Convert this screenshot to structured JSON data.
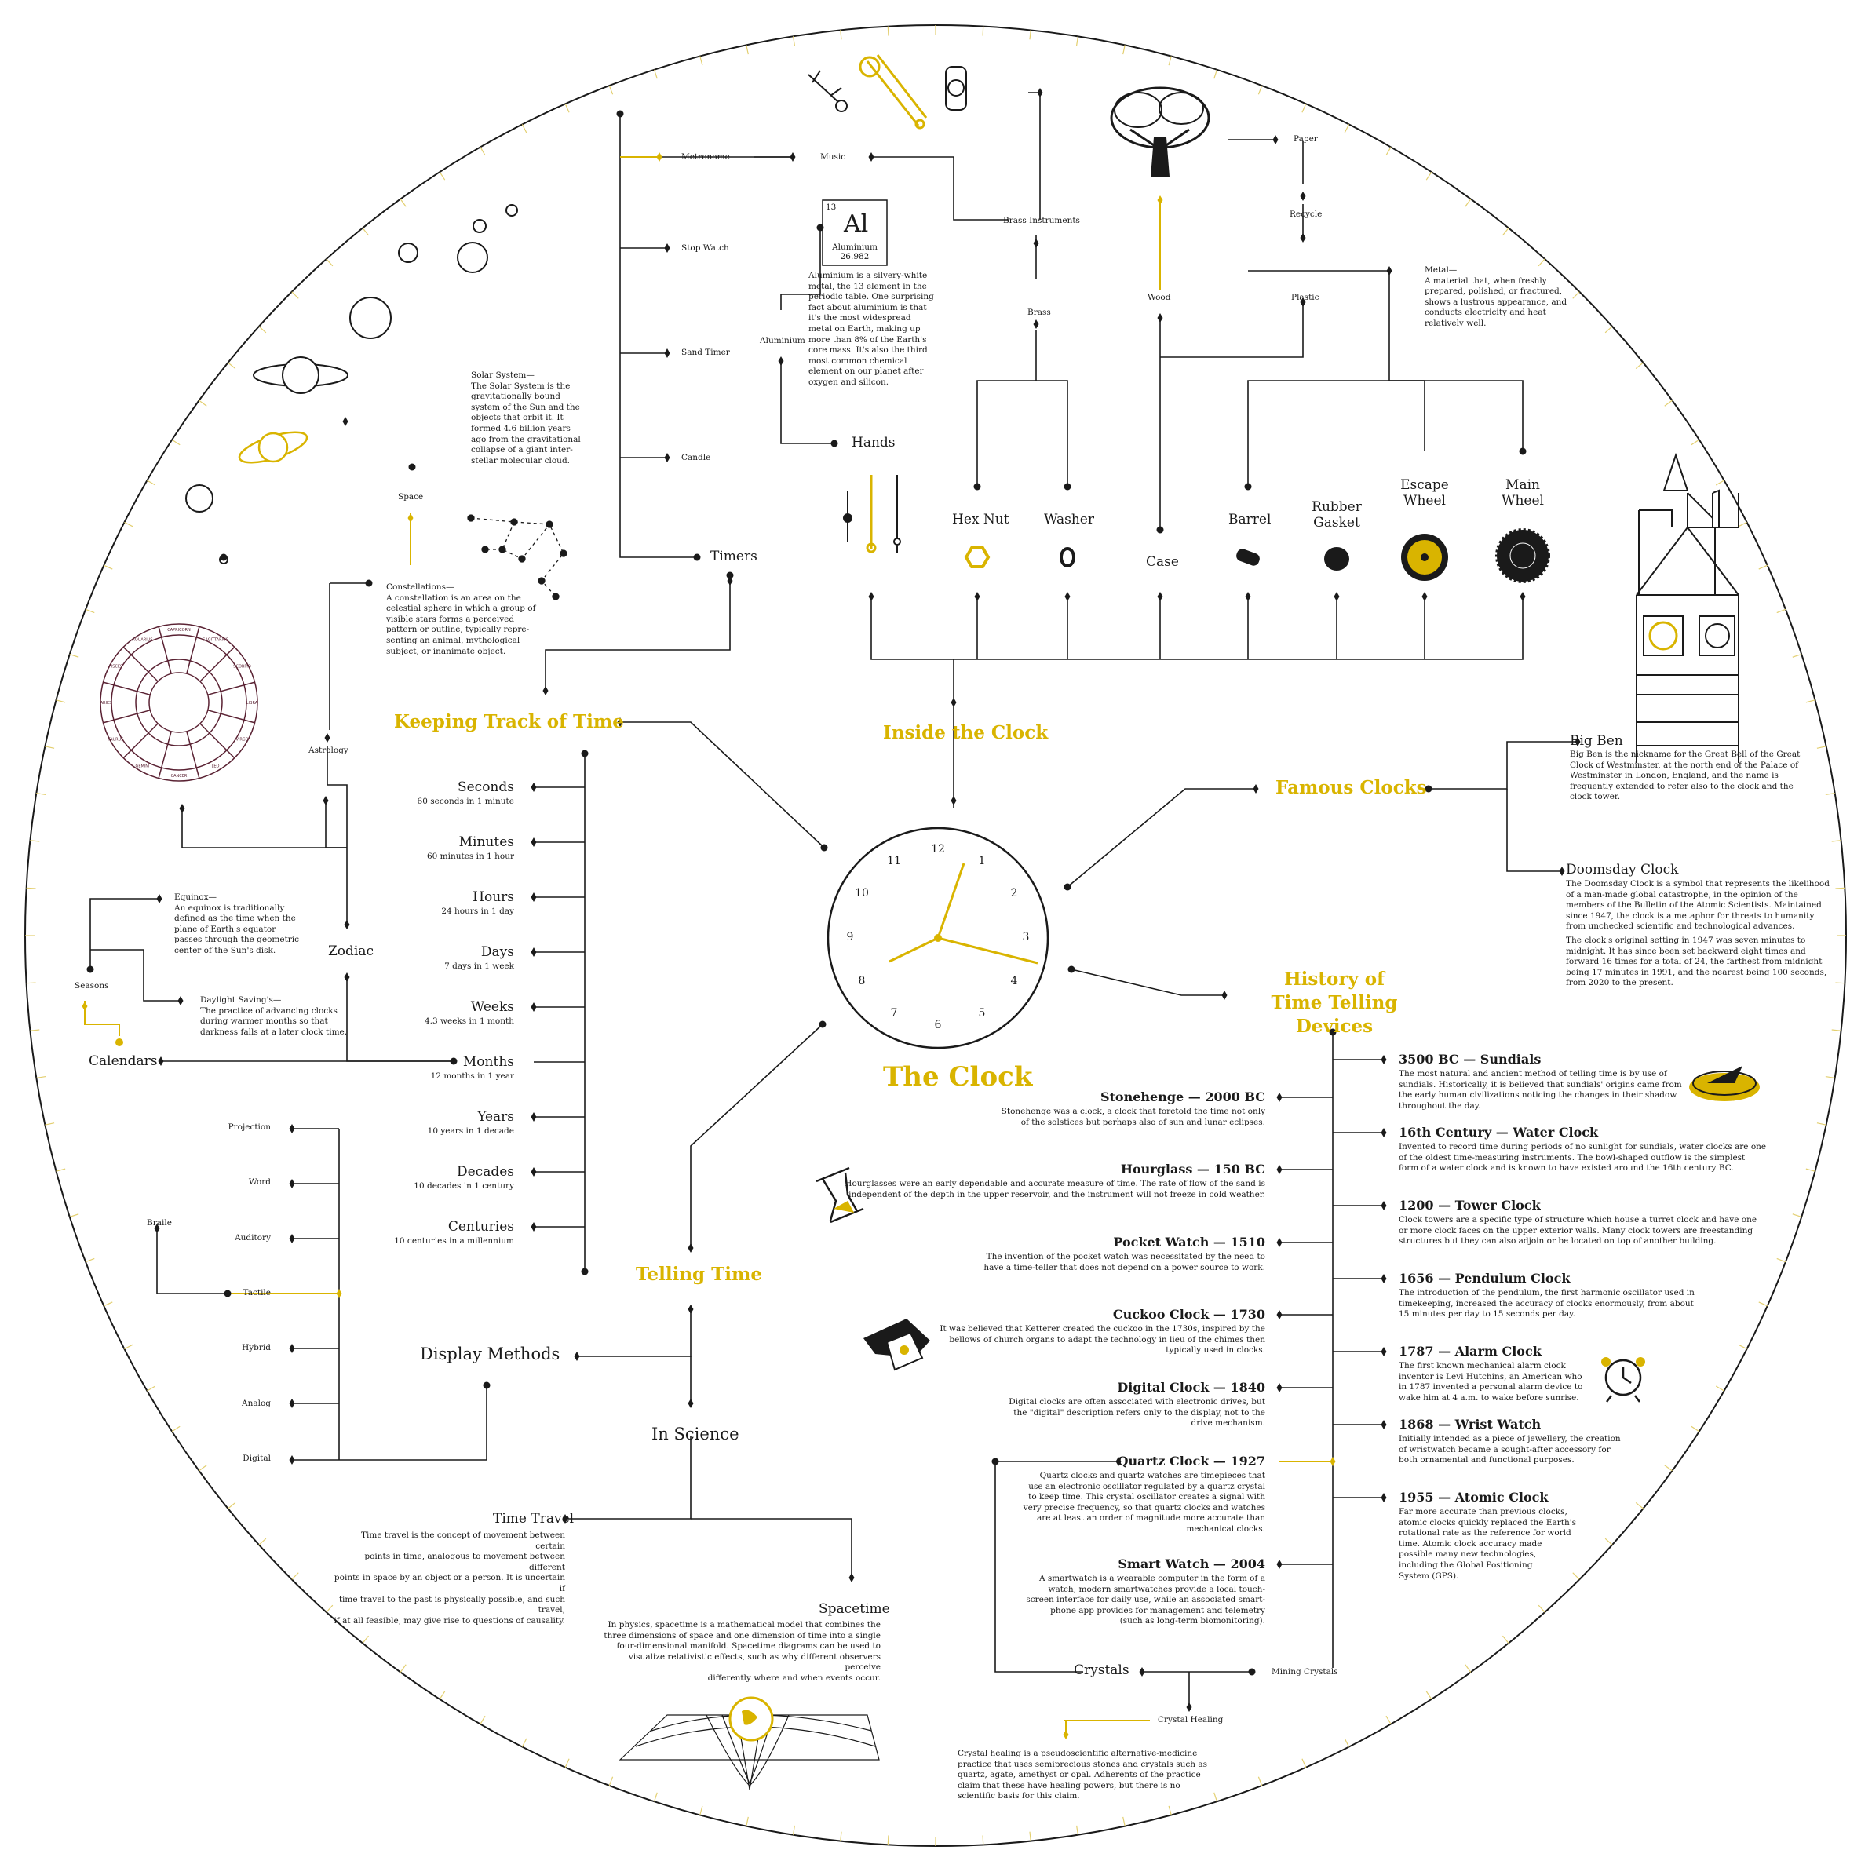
{
  "title": "The Clock",
  "colors": {
    "accent": "#d9b400",
    "line": "#1a1a1a",
    "background": "#ffffff"
  },
  "clock": {
    "numbers": [
      "12",
      "1",
      "2",
      "3",
      "4",
      "5",
      "6",
      "7",
      "8",
      "9",
      "10",
      "11"
    ]
  },
  "categories": {
    "keeping": "Keeping Track of  Time",
    "inside": "Inside the Clock",
    "famous": "Famous Clocks",
    "history": "History of\nTime Telling Devices",
    "telling": "Telling Time"
  },
  "timeline": [
    {
      "unit": "Seconds",
      "desc": "60 seconds in 1 minute"
    },
    {
      "unit": "Minutes",
      "desc": "60 minutes in 1 hour"
    },
    {
      "unit": "Hours",
      "desc": "24 hours in 1 day"
    },
    {
      "unit": "Days",
      "desc": "7 days in 1 week"
    },
    {
      "unit": "Weeks",
      "desc": "4.3 weeks in 1 month"
    },
    {
      "unit": "Months",
      "desc": "12 months in 1 year"
    },
    {
      "unit": "Years",
      "desc": "10 years in 1 decade"
    },
    {
      "unit": "Decades",
      "desc": "10 decades in 1 century"
    },
    {
      "unit": "Centuries",
      "desc": "10 centuries in a millennium"
    }
  ],
  "timers": {
    "label": "Timers",
    "items": [
      "Metronome",
      "Stop Watch",
      "Sand Timer",
      "Candle"
    ],
    "music": "Music",
    "brass_instruments": "Brass Instruments",
    "brass": "Brass"
  },
  "aluminium": {
    "number": "13",
    "symbol": "Al",
    "name": "Aluminium",
    "mass": "26.982",
    "label": "Aluminium",
    "desc": "Aluminium is a silvery-white\nmetal, the 13 element in the\nperiodic table. One surprising\nfact about aluminium is that\nit's the most widespread\nmetal on Earth, making up\nmore than 8% of the Earth's\ncore mass. It's also the third\nmost common chemical\nelement on our planet after\noxygen and silicon."
  },
  "wood_branch": {
    "paper": "Paper",
    "recycle": "Recycle",
    "plastic": "Plastic",
    "wood": "Wood"
  },
  "metal": {
    "desc": "Metal—\nA material that, when freshly\nprepared, polished, or fractured,\nshows a lustrous appearance, and\nconducts electricity and heat\nrelatively well."
  },
  "parts": {
    "hands": "Hands",
    "hex_nut": "Hex Nut",
    "washer": "Washer",
    "case": "Case",
    "barrel": "Barrel",
    "rubber_gasket": "Rubber\nGasket",
    "escape_wheel": "Escape\nWheel",
    "main_wheel": "Main\nWheel"
  },
  "space": {
    "space": "Space",
    "solar_desc": "Solar System—\nThe Solar System is the\ngravitationally bound\nsystem of the Sun and the\nobjects that orbit it. It\nformed 4.6 billion years\nago from the gravitational\ncollapse of a giant inter-\nstellar molecular cloud.",
    "constellation_desc": "Constellations—\nA constellation is an area on the\ncelestial sphere in which a group of\nvisible stars forms a perceived\npattern or outline, typically repre-\nsenting an animal, mythological\nsubject, or inanimate object.",
    "astrology": "Astrology",
    "zodiac": "Zodiac"
  },
  "zodiac_signs": [
    "CAPRICORN",
    "SAGITTARIUS",
    "SCORPIO",
    "LIBRA",
    "VIRGO",
    "LEO",
    "CANCER",
    "GEMINI",
    "TAURUS",
    "ARIES",
    "PISCES",
    "AQUARIUS"
  ],
  "calendars": {
    "label": "Calendars",
    "seasons": "Seasons",
    "equinox_desc": "Equinox—\nAn equinox is traditionally\ndefined as the time when the\nplane of Earth's equator\npasses through the geometric\ncenter of the Sun's disk.",
    "daylight_desc": "Daylight Saving's—\nThe practice of advancing clocks\nduring warmer months so that\ndarkness falls at a later clock time."
  },
  "display": {
    "label": "Display Methods",
    "braile": "Braile",
    "items": [
      "Projection",
      "Word",
      "Auditory",
      "Tactile",
      "Hybrid",
      "Analog",
      "Digital"
    ]
  },
  "science": {
    "label": "In Science",
    "time_travel": "Time Travel",
    "time_travel_desc": "Time travel is the concept of movement between certain\npoints in time, analogous to movement between different\npoints in space by an object or a person. It is uncertain if\ntime travel to the past is physically possible, and such travel,\nif at all feasible, may give rise to questions of causality.",
    "spacetime": "Spacetime",
    "spacetime_desc": "In physics, spacetime is a mathematical model that combines the\nthree dimensions of space and one dimension of time into a single\nfour-dimensional manifold. Spacetime diagrams can be used to\nvisualize relativistic effects, such as why different observers perceive\ndifferently where and when events occur."
  },
  "famous": {
    "bigben": "Big Ben",
    "bigben_desc": "Big Ben is the nickname for the Great Bell of the Great\nClock of Westminster, at the north end of the Palace of\nWestminster in London, England, and the name is\nfrequently extended to refer also to the clock and the\nclock tower.",
    "doomsday": "Doomsday Clock",
    "doomsday_desc": "The Doomsday Clock is a symbol that represents the likelihood\nof a man-made global catastrophe, in the opinion of the\nmembers of the Bulletin of the Atomic Scientists. Maintained\nsince 1947, the clock is a metaphor for threats to humanity\nfrom unchecked scientific and technological advances.",
    "doomsday_desc2": "The clock's original setting in 1947 was seven minutes to\nmidnight. It has since been set backward eight times and\nforward 16 times for a total of 24, the farthest from midnight\nbeing 17 minutes in 1991, and the nearest being 100 seconds,\nfrom 2020 to the present."
  },
  "history_right": [
    {
      "title": "3500 BC — Sundials",
      "desc": "The most natural and ancient method of telling time is by use of\nsundials. Historically, it is believed that sundials' origins came from\nthe early human civilizations noticing the changes in their shadow\nthroughout the day."
    },
    {
      "title": "16th Century — Water Clock",
      "desc": "Invented to record time during periods of no sunlight for sundials, water clocks are one\nof the oldest time-measuring instruments. The bowl-shaped outflow is the simplest\nform of a water clock and is known to have existed around the 16th century BC."
    },
    {
      "title": "1200 — Tower Clock",
      "desc": "Clock towers are a specific type of structure which house a turret clock and have one\nor more clock faces on the upper exterior walls. Many clock towers are freestanding\nstructures but they can also adjoin or be located on top of another building."
    },
    {
      "title": "1656 — Pendulum Clock",
      "desc": "The introduction of the pendulum, the first harmonic oscillator used in\ntimekeeping, increased the accuracy of clocks enormously, from about\n15 minutes per day to 15 seconds per day."
    },
    {
      "title": "1787 — Alarm Clock",
      "desc": "The first known mechanical alarm clock\ninventor is Levi Hutchins, an American who\nin 1787 invented a personal alarm device to\nwake him at 4 a.m. to wake before sunrise."
    },
    {
      "title": "1868 — Wrist Watch",
      "desc": "Initially intended as a piece of jewellery, the creation\nof wristwatch became a sought-after accessory for\nboth ornamental and functional purposes."
    },
    {
      "title": "1955 — Atomic Clock",
      "desc": "Far more accurate than previous clocks,\natomic clocks quickly replaced the Earth's\nrotational rate as the reference for world\ntime. Atomic clock accuracy made\npossible many new technologies,\nincluding the Global Positioning\nSystem (GPS)."
    }
  ],
  "history_left": [
    {
      "title": "Stonehenge — 2000 BC",
      "desc": "Stonehenge was a clock, a clock that foretold the time not only\nof the solstices but perhaps also of sun and lunar eclipses."
    },
    {
      "title": "Hourglass — 150 BC",
      "desc": "Hourglasses were an early dependable and accurate measure of time. The rate of flow of the sand is\nindependent of the depth in the upper reservoir, and the instrument will not freeze in cold weather."
    },
    {
      "title": "Pocket Watch — 1510",
      "desc": "The invention of the pocket watch was necessitated by the need to\nhave a time-teller that does not depend on a power source to work."
    },
    {
      "title": "Cuckoo Clock — 1730",
      "desc": "It was believed that Ketterer created the cuckoo in the 1730s, inspired by the\nbellows of church organs to adapt the technology in lieu of the chimes then\ntypically used in clocks."
    },
    {
      "title": "Digital Clock — 1840",
      "desc": "Digital clocks are often associated with electronic drives, but\nthe \"digital\" description refers only to the display, not to the\ndrive mechanism."
    },
    {
      "title": "Quartz Clock — 1927",
      "desc": "Quartz clocks and quartz watches are timepieces that\nuse an electronic oscillator regulated by a quartz crystal\nto keep time. This crystal oscillator creates a signal with\nvery precise frequency, so that quartz clocks and watches\nare at least an order of magnitude more accurate than\nmechanical clocks."
    },
    {
      "title": "Smart Watch — 2004",
      "desc": "A smartwatch is a wearable computer in the form of a\nwatch; modern smartwatches provide a local touch-\nscreen interface for daily use, while an associated smart-\nphone app provides for management and telemetry\n(such as long-term biomonitoring)."
    }
  ],
  "crystals": {
    "label": "Crystals",
    "mining": "Mining Crystals",
    "healing": "Crystal Healing",
    "healing_desc": "Crystal healing is a pseudoscientific alternative-medicine\npractice that uses semiprecious stones and crystals such as\nquartz, agate, amethyst or opal. Adherents of the practice\nclaim that these have healing powers, but there is no\nscientific basis for this claim."
  }
}
